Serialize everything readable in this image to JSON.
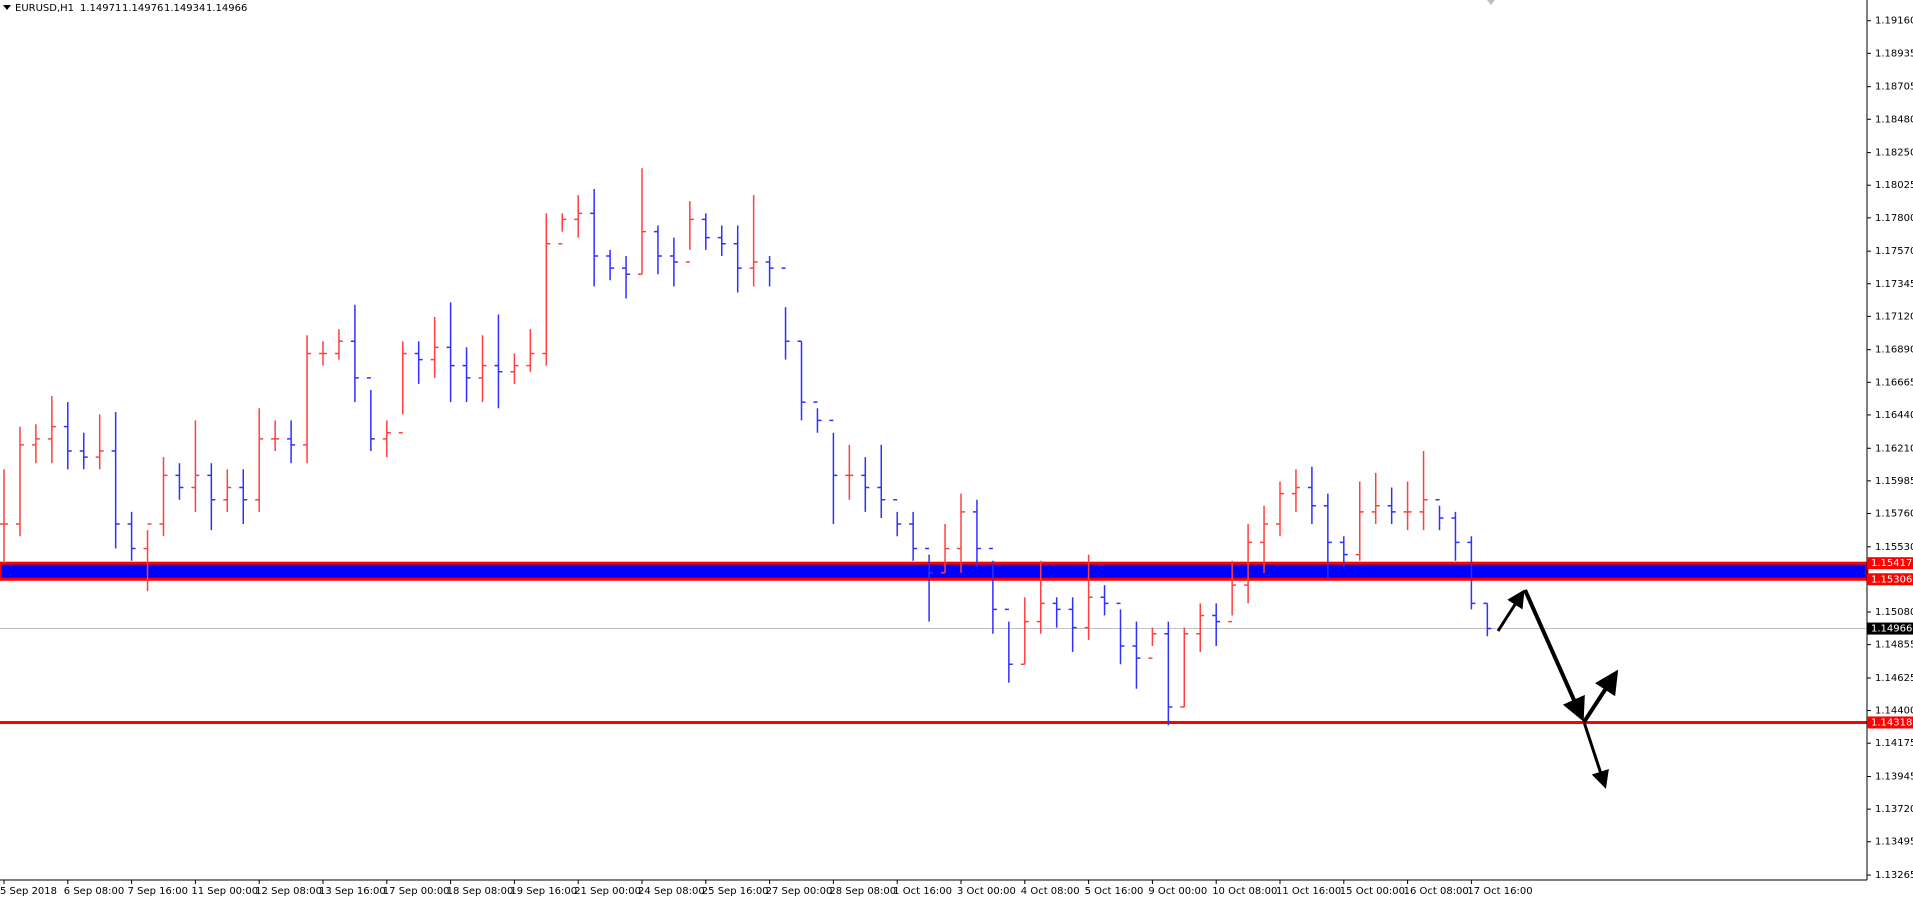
{
  "chart_data": {
    "type": "ohlc",
    "symbol": "EURUSD,H1",
    "header_prices": [
      1.14971,
      1.14976,
      1.14934,
      1.14966
    ],
    "categories": [
      "5 Sep 2018",
      "6 Sep 08:00",
      "7 Sep 16:00",
      "11 Sep 00:00",
      "12 Sep 08:00",
      "13 Sep 16:00",
      "17 Sep 00:00",
      "18 Sep 08:00",
      "19 Sep 16:00",
      "21 Sep 00:00",
      "24 Sep 08:00",
      "25 Sep 16:00",
      "27 Sep 00:00",
      "28 Sep 08:00",
      "1 Oct 16:00",
      "3 Oct 00:00",
      "4 Oct 08:00",
      "5 Oct 16:00",
      "9 Oct 00:00",
      "10 Oct 08:00",
      "11 Oct 16:00",
      "15 Oct 00:00",
      "16 Oct 08:00",
      "17 Oct 16:00"
    ],
    "high": [
      1.16065,
      1.16359,
      1.16376,
      1.1657,
      1.16528,
      1.16317,
      1.16444,
      1.1646,
      1.15771,
      1.15645,
      1.16149,
      1.16107,
      1.16402,
      1.16107,
      1.16065,
      1.16065,
      1.16486,
      1.16402,
      1.16402,
      1.1699,
      1.16948,
      1.17032,
      1.172,
      1.16612,
      1.16402,
      1.16948,
      1.16948,
      1.17116,
      1.17217,
      1.16906,
      1.1699,
      1.17133,
      1.16864,
      1.17032,
      1.17831,
      1.17831,
      1.17957,
      1.17999,
      1.17579,
      1.17537,
      1.18142,
      1.17747,
      1.17663,
      1.17915,
      1.17831,
      1.17747,
      1.17747,
      1.17957,
      1.17537,
      1.17184,
      1.16948,
      1.16486,
      1.16317,
      1.16233,
      1.16149,
      1.16233,
      1.15771,
      1.15771,
      1.15476,
      1.15687,
      1.15897,
      1.15855,
      1.15434,
      1.15014,
      1.15182,
      1.15434,
      1.15182,
      1.15182,
      1.15476,
      1.15266,
      1.15098,
      1.15014,
      1.14972,
      1.15014,
      1.14972,
      1.1514,
      1.1514,
      1.15434,
      1.15687,
      1.15813,
      1.15981,
      1.16065,
      1.16082,
      1.15897,
      1.15603,
      1.15981,
      1.1604,
      1.15939,
      1.15981,
      1.16191,
      1.15813,
      1.15771,
      1.15603,
      1.1514
    ],
    "low": [
      1.15418,
      1.15603,
      1.16107,
      1.16107,
      1.16065,
      1.16065,
      1.16065,
      1.15518,
      1.15434,
      1.15224,
      1.15603,
      1.15855,
      1.15771,
      1.15645,
      1.15771,
      1.15687,
      1.15771,
      1.16191,
      1.16107,
      1.16107,
      1.1678,
      1.16822,
      1.16528,
      1.16191,
      1.16149,
      1.16444,
      1.16654,
      1.16696,
      1.16528,
      1.16528,
      1.16528,
      1.16486,
      1.16654,
      1.16738,
      1.1678,
      1.17705,
      1.17663,
      1.17327,
      1.17369,
      1.17243,
      1.17411,
      1.17411,
      1.17327,
      1.17579,
      1.17579,
      1.17537,
      1.17285,
      1.17327,
      1.17327,
      1.16822,
      1.16402,
      1.16317,
      1.15687,
      1.15855,
      1.15771,
      1.15729,
      1.15603,
      1.15434,
      1.15014,
      1.1535,
      1.1535,
      1.15392,
      1.1493,
      1.14593,
      1.1472,
      1.1493,
      1.14972,
      1.14804,
      1.14888,
      1.15056,
      1.1472,
      1.14551,
      1.14846,
      1.14299,
      1.14425,
      1.14804,
      1.14846,
      1.15056,
      1.1514,
      1.1535,
      1.15603,
      1.15771,
      1.15687,
      1.15308,
      1.15392,
      1.15434,
      1.15687,
      1.15687,
      1.15645,
      1.15645,
      1.15645,
      1.15434,
      1.15098,
      1.14913
    ],
    "close": [
      1.15687,
      1.16233,
      1.16275,
      1.16359,
      1.16191,
      1.16149,
      1.16191,
      1.15687,
      1.15518,
      1.15687,
      1.16023,
      1.15939,
      1.16023,
      1.15855,
      1.15939,
      1.15855,
      1.16275,
      1.16275,
      1.16233,
      1.16864,
      1.16864,
      1.16948,
      1.16696,
      1.16275,
      1.16317,
      1.16864,
      1.16822,
      1.16906,
      1.1678,
      1.16696,
      1.1678,
      1.16738,
      1.1678,
      1.16864,
      1.17621,
      1.17789,
      1.17831,
      1.17537,
      1.17453,
      1.17411,
      1.17705,
      1.17537,
      1.17495,
      1.17789,
      1.17663,
      1.17621,
      1.17453,
      1.17495,
      1.17453,
      1.16948,
      1.16528,
      1.16402,
      1.16023,
      1.16023,
      1.15939,
      1.15855,
      1.15687,
      1.15518,
      1.1535,
      1.15518,
      1.15771,
      1.15518,
      1.15098,
      1.1472,
      1.15014,
      1.1514,
      1.15098,
      1.14972,
      1.15182,
      1.1514,
      1.14846,
      1.14762,
      1.1493,
      1.14425,
      1.1493,
      1.15056,
      1.15014,
      1.15266,
      1.15561,
      1.15687,
      1.15897,
      1.15939,
      1.15813,
      1.15561,
      1.15476,
      1.15771,
      1.15813,
      1.15771,
      1.15771,
      1.15855,
      1.15729,
      1.15561,
      1.1514,
      1.14966
    ],
    "up_color": "#ff4040",
    "down_color": "#3030ff",
    "ylim": [
      1.13231,
      1.19303
    ],
    "yticks": [
      {
        "value": 1.1916,
        "label": "1.19160"
      },
      1.18935,
      1.18705,
      {
        "value": 1.1848,
        "label": "1.18480"
      },
      {
        "value": 1.1825,
        "label": "1.18250"
      },
      1.18025,
      {
        "value": 1.178,
        "label": "1.17800"
      },
      {
        "value": 1.1757,
        "label": "1.17570"
      },
      1.17345,
      {
        "value": 1.1712,
        "label": "1.17120"
      },
      {
        "value": 1.1689,
        "label": "1.16890"
      },
      1.16665,
      {
        "value": 1.1644,
        "label": "1.16440"
      },
      {
        "value": 1.1621,
        "label": "1.16210"
      },
      1.15985,
      {
        "value": 1.1576,
        "label": "1.15760"
      },
      {
        "value": 1.1553,
        "label": "1.15530"
      },
      {
        "value": 1.1508,
        "label": "1.15080"
      },
      1.14855,
      1.14625,
      {
        "value": 1.144,
        "label": "1.14400"
      },
      1.14175,
      1.13945,
      {
        "value": 1.1372,
        "label": "1.13720"
      },
      1.13495,
      1.13265
    ],
    "zone": {
      "top": 1.15417,
      "bottom": 1.15306,
      "fill": "#0000ff",
      "border": "#ff0000"
    },
    "levels": [
      {
        "value": 1.14318,
        "color": "#ff0000"
      }
    ],
    "current_price": 1.14966
  }
}
